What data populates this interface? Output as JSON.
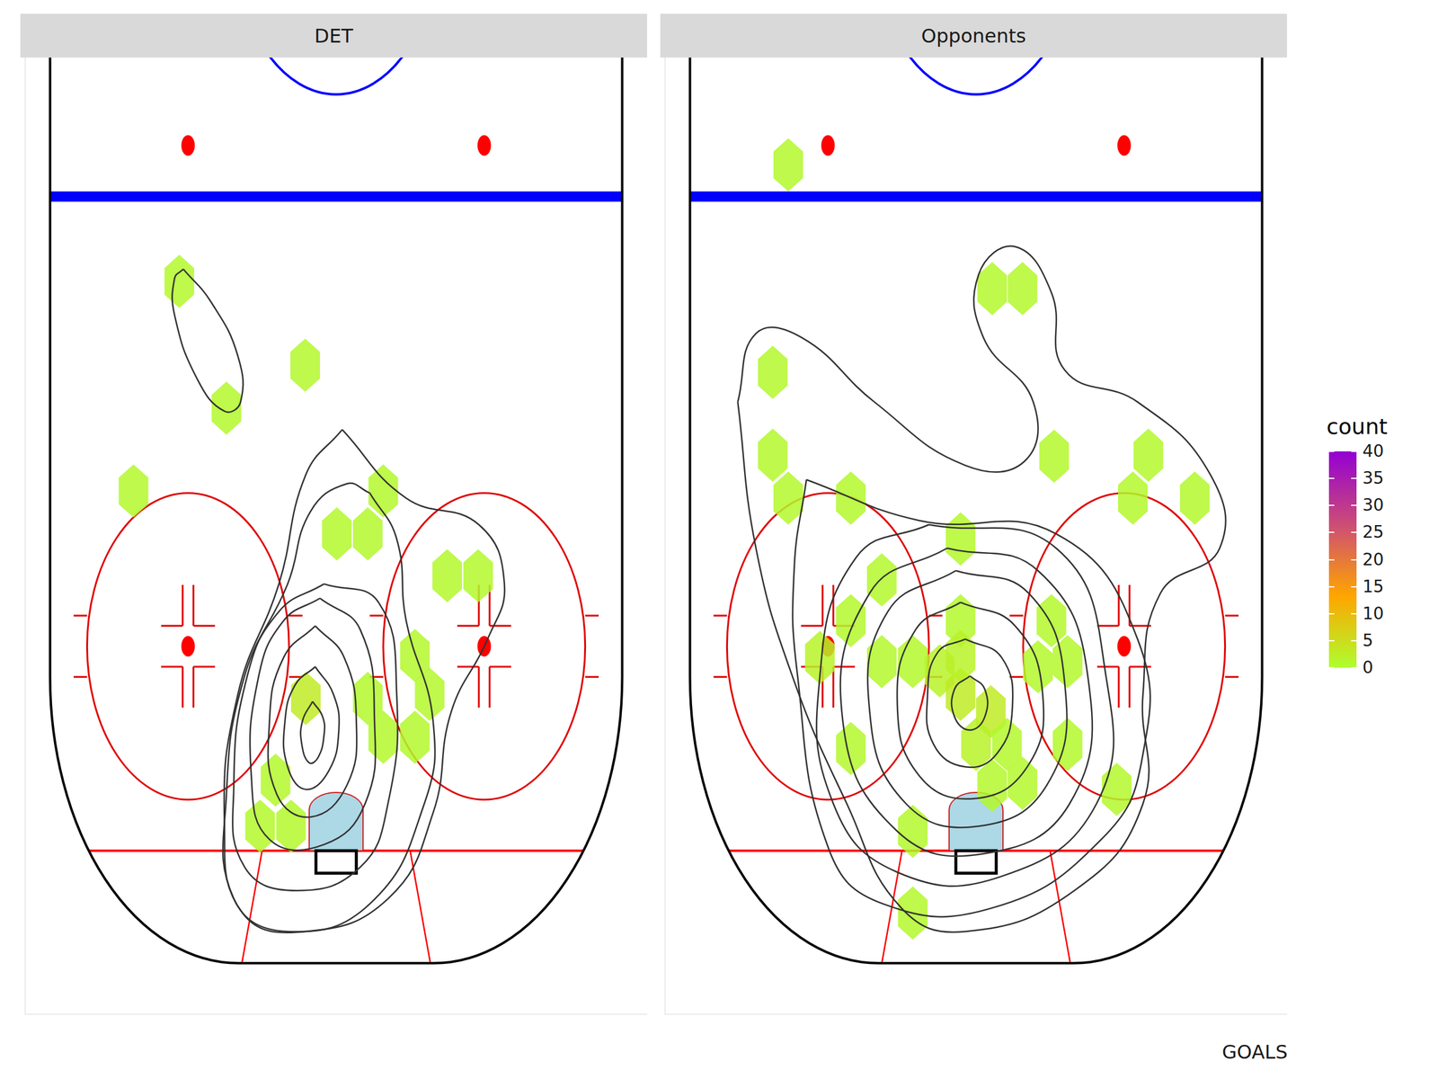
{
  "chart_data": [
    {
      "type": "hexbin",
      "title": "DET",
      "xlim": [
        -46.2,
        46.2
      ],
      "ylim": [
        -5,
        88.6
      ],
      "xticks": [],
      "yticks": [],
      "tick_labels": false,
      "grid": false,
      "legend": "right",
      "cells": [
        {
          "x": -23.3,
          "y": 66.7,
          "count": 1
        },
        {
          "x": -16.3,
          "y": 54.3,
          "count": 1
        },
        {
          "x": -4.6,
          "y": 58.5,
          "count": 1
        },
        {
          "x": -30.1,
          "y": 46.2,
          "count": 1
        },
        {
          "x": 7.0,
          "y": 46.2,
          "count": 1
        },
        {
          "x": 0.1,
          "y": 42.0,
          "count": 1
        },
        {
          "x": 4.7,
          "y": 42.0,
          "count": 1
        },
        {
          "x": 16.5,
          "y": 37.9,
          "count": 1
        },
        {
          "x": 21.1,
          "y": 37.9,
          "count": 1
        },
        {
          "x": 11.7,
          "y": 30.1,
          "count": 1
        },
        {
          "x": 13.9,
          "y": 26.3,
          "count": 1
        },
        {
          "x": 4.7,
          "y": 25.9,
          "count": 1
        },
        {
          "x": 7.0,
          "y": 22.1,
          "count": 1
        },
        {
          "x": 11.7,
          "y": 22.1,
          "count": 1
        },
        {
          "x": -4.5,
          "y": 25.9,
          "count": 3
        },
        {
          "x": -9.0,
          "y": 17.9,
          "count": 1
        },
        {
          "x": -11.3,
          "y": 13.4,
          "count": 1
        },
        {
          "x": -6.7,
          "y": 13.4,
          "count": 1
        }
      ],
      "contours": [
        [
          [
            -3.5,
            25.6
          ],
          [
            -2.0,
            24.1
          ],
          [
            -1.8,
            22.3
          ],
          [
            -2.7,
            20.1
          ],
          [
            -4.0,
            19.6
          ],
          [
            -5.1,
            21.4
          ],
          [
            -5.0,
            23.7
          ]
        ],
        [
          [
            -3.1,
            29.0
          ],
          [
            -0.4,
            26.3
          ],
          [
            0.4,
            22.8
          ],
          [
            -1.1,
            18.8
          ],
          [
            -4.5,
            17.0
          ],
          [
            -7.2,
            19.2
          ],
          [
            -7.6,
            23.7
          ],
          [
            -6.1,
            27.2
          ]
        ],
        [
          [
            -3.1,
            33.0
          ],
          [
            1.2,
            29.9
          ],
          [
            3.0,
            23.7
          ],
          [
            1.6,
            17.4
          ],
          [
            -3.8,
            14.3
          ],
          [
            -8.8,
            16.5
          ],
          [
            -9.9,
            23.7
          ],
          [
            -7.8,
            29.9
          ]
        ],
        [
          [
            -2.4,
            35.7
          ],
          [
            3.6,
            32.6
          ],
          [
            5.7,
            23.7
          ],
          [
            4.3,
            15.6
          ],
          [
            -1.8,
            11.6
          ],
          [
            -9.9,
            12.1
          ],
          [
            -12.6,
            18.3
          ],
          [
            -11.5,
            28.1
          ],
          [
            -7.8,
            33.5
          ]
        ],
        [
          [
            -1.8,
            37.1
          ],
          [
            6.3,
            35.3
          ],
          [
            9.0,
            26.3
          ],
          [
            7.7,
            15.6
          ],
          [
            3.6,
            9.4
          ],
          [
            -5.8,
            7.1
          ],
          [
            -13.6,
            9.4
          ],
          [
            -15.2,
            17.4
          ],
          [
            -13.2,
            28.1
          ],
          [
            -8.5,
            34.4
          ]
        ],
        [
          [
            5.0,
            46.0
          ],
          [
            9.0,
            41.5
          ],
          [
            10.4,
            33.5
          ],
          [
            14.4,
            23.7
          ],
          [
            13.1,
            15.6
          ],
          [
            5.0,
            5.8
          ],
          [
            -7.2,
            3.1
          ],
          [
            -15.2,
            6.3
          ],
          [
            -16.3,
            16.5
          ],
          [
            -13.6,
            28.1
          ],
          [
            -7.2,
            37.1
          ],
          [
            -3.8,
            44.2
          ],
          [
            1.6,
            46.9
          ]
        ],
        [
          [
            0.9,
            52.2
          ],
          [
            10.4,
            45.5
          ],
          [
            21.2,
            42.9
          ],
          [
            25.0,
            37.1
          ],
          [
            22.5,
            31.7
          ],
          [
            17.1,
            24.6
          ],
          [
            14.4,
            14.7
          ],
          [
            7.7,
            6.3
          ],
          [
            -4.5,
            3.1
          ],
          [
            -13.9,
            4.9
          ],
          [
            -16.6,
            13.8
          ],
          [
            -14.6,
            26.3
          ],
          [
            -8.5,
            37.1
          ],
          [
            -4.5,
            47.8
          ]
        ],
        [
          [
            -22.7,
            67.9
          ],
          [
            -18.6,
            64.7
          ],
          [
            -14.6,
            59.4
          ],
          [
            -14.2,
            54.9
          ],
          [
            -16.6,
            54.0
          ],
          [
            -20.6,
            57.1
          ],
          [
            -24.0,
            63.4
          ],
          [
            -24.0,
            67.0
          ]
        ]
      ]
    },
    {
      "type": "hexbin",
      "title": "Opponents",
      "xlim": [
        -46.2,
        46.2
      ],
      "ylim": [
        -5,
        88.6
      ],
      "xticks": [],
      "yticks": [],
      "tick_labels": false,
      "grid": false,
      "legend": "right",
      "cells": [
        {
          "x": -27.9,
          "y": 78.1,
          "count": 1
        },
        {
          "x": 2.4,
          "y": 66.0,
          "count": 1
        },
        {
          "x": 6.9,
          "y": 66.0,
          "count": 1
        },
        {
          "x": -30.2,
          "y": 57.8,
          "count": 1
        },
        {
          "x": 11.6,
          "y": 49.6,
          "count": 1
        },
        {
          "x": -30.2,
          "y": 49.7,
          "count": 1
        },
        {
          "x": -27.9,
          "y": 45.5,
          "count": 1
        },
        {
          "x": -18.6,
          "y": 45.5,
          "count": 1
        },
        {
          "x": 25.6,
          "y": 49.7,
          "count": 1
        },
        {
          "x": 23.3,
          "y": 45.5,
          "count": 1
        },
        {
          "x": 32.5,
          "y": 45.5,
          "count": 1
        },
        {
          "x": -2.3,
          "y": 41.5,
          "count": 1
        },
        {
          "x": -14.0,
          "y": 37.5,
          "count": 1
        },
        {
          "x": -18.6,
          "y": 33.5,
          "count": 1
        },
        {
          "x": -23.2,
          "y": 29.9,
          "count": 2
        },
        {
          "x": -14.0,
          "y": 29.5,
          "count": 1
        },
        {
          "x": -9.4,
          "y": 29.5,
          "count": 1
        },
        {
          "x": -2.3,
          "y": 33.5,
          "count": 1
        },
        {
          "x": -5.4,
          "y": 28.6,
          "count": 2
        },
        {
          "x": 11.2,
          "y": 33.5,
          "count": 1
        },
        {
          "x": 9.2,
          "y": 29.0,
          "count": 1
        },
        {
          "x": 13.6,
          "y": 29.5,
          "count": 1
        },
        {
          "x": -2.3,
          "y": 26.3,
          "count": 3
        },
        {
          "x": 2.2,
          "y": 24.6,
          "count": 3
        },
        {
          "x": 0.0,
          "y": 21.4,
          "count": 2
        },
        {
          "x": 4.6,
          "y": 21.4,
          "count": 1
        },
        {
          "x": 6.9,
          "y": 17.6,
          "count": 1
        },
        {
          "x": 2.4,
          "y": 17.4,
          "count": 1
        },
        {
          "x": 13.6,
          "y": 21.4,
          "count": 1
        },
        {
          "x": -18.6,
          "y": 21.0,
          "count": 1
        },
        {
          "x": 20.9,
          "y": 17.0,
          "count": 1
        },
        {
          "x": -9.4,
          "y": 12.9,
          "count": 1
        },
        {
          "x": -9.4,
          "y": 4.9,
          "count": 1
        },
        {
          "x": -2.3,
          "y": 30.0,
          "count": 2
        }
      ],
      "contours": [
        [
          [
            -0.9,
            28.1
          ],
          [
            1.3,
            26.8
          ],
          [
            1.3,
            24.1
          ],
          [
            -0.9,
            22.8
          ],
          [
            -3.2,
            24.1
          ],
          [
            -3.2,
            26.8
          ]
        ],
        [
          [
            -1.6,
            31.7
          ],
          [
            3.8,
            29.9
          ],
          [
            5.4,
            25.0
          ],
          [
            3.1,
            20.5
          ],
          [
            -1.6,
            19.2
          ],
          [
            -6.3,
            21.4
          ],
          [
            -7.2,
            26.3
          ],
          [
            -5.7,
            30.4
          ]
        ],
        [
          [
            -2.3,
            35.3
          ],
          [
            5.8,
            33.0
          ],
          [
            9.9,
            26.3
          ],
          [
            7.6,
            19.2
          ],
          [
            -0.3,
            16.1
          ],
          [
            -8.4,
            18.3
          ],
          [
            -11.7,
            25.4
          ],
          [
            -9.0,
            32.6
          ]
        ],
        [
          [
            -3.0,
            38.4
          ],
          [
            7.8,
            36.2
          ],
          [
            13.2,
            27.2
          ],
          [
            10.5,
            17.4
          ],
          [
            0.4,
            13.4
          ],
          [
            -10.4,
            15.6
          ],
          [
            -15.8,
            24.6
          ],
          [
            -13.1,
            34.4
          ]
        ],
        [
          [
            -4.3,
            40.6
          ],
          [
            9.2,
            38.4
          ],
          [
            16.6,
            28.1
          ],
          [
            13.9,
            15.6
          ],
          [
            1.1,
            10.7
          ],
          [
            -11.7,
            12.9
          ],
          [
            -19.8,
            23.7
          ],
          [
            -15.8,
            36.2
          ]
        ],
        [
          [
            -7.0,
            42.9
          ],
          [
            11.9,
            40.6
          ],
          [
            19.3,
            28.1
          ],
          [
            17.9,
            15.6
          ],
          [
            3.8,
            8.5
          ],
          [
            -11.7,
            8.9
          ],
          [
            -21.2,
            15.6
          ],
          [
            -23.2,
            28.1
          ],
          [
            -17.8,
            39.7
          ]
        ],
        [
          [
            -25.2,
            47.3
          ],
          [
            -8.4,
            43.3
          ],
          [
            11.9,
            42.0
          ],
          [
            24.0,
            31.7
          ],
          [
            24.7,
            20.1
          ],
          [
            18.6,
            12.1
          ],
          [
            2.4,
            5.4
          ],
          [
            -13.8,
            5.8
          ],
          [
            -21.9,
            11.2
          ],
          [
            -26.6,
            28.6
          ],
          [
            -27.0,
            38.8
          ]
        ],
        [
          [
            -35.4,
            54.9
          ],
          [
            -32.7,
            61.6
          ],
          [
            -25.9,
            61.2
          ],
          [
            -15.1,
            54.9
          ],
          [
            -1.6,
            48.7
          ],
          [
            7.2,
            49.1
          ],
          [
            8.5,
            54.9
          ],
          [
            1.1,
            61.2
          ],
          [
            0.4,
            67.4
          ],
          [
            5.8,
            70.1
          ],
          [
            11.2,
            65.6
          ],
          [
            13.2,
            58.0
          ],
          [
            24.0,
            54.9
          ],
          [
            34.8,
            47.8
          ],
          [
            36.2,
            40.6
          ],
          [
            27.4,
            36.2
          ],
          [
            24.8,
            26.3
          ],
          [
            24.8,
            15.6
          ],
          [
            14.6,
            7.1
          ],
          [
            -1.6,
            3.1
          ],
          [
            -11.1,
            5.4
          ],
          [
            -19.2,
            15.6
          ],
          [
            -27.3,
            28.1
          ],
          [
            -32.7,
            40.6
          ]
        ]
      ]
    }
  ],
  "color_bar": {
    "title": "count",
    "range": [
      0,
      40
    ],
    "ticks": [
      0,
      5,
      10,
      15,
      20,
      25,
      30,
      35,
      40
    ],
    "colors": [
      "#adff2f",
      "#ffa500",
      "#cc4c77",
      "#9400d3"
    ]
  },
  "caption": "GOALS"
}
